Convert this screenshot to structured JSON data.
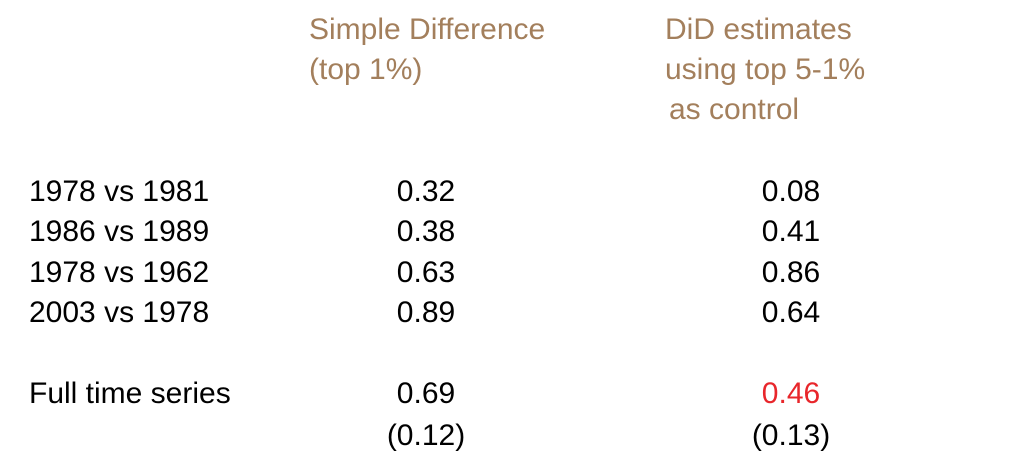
{
  "headers": {
    "col1": [
      "Simple Difference",
      "(top 1%)"
    ],
    "col2": [
      "DiD estimates",
      "using top 5-1%",
      "as control"
    ]
  },
  "rows": [
    {
      "label": "1978 vs 1981",
      "simple": "0.32",
      "did": "0.08"
    },
    {
      "label": "1986 vs 1989",
      "simple": "0.38",
      "did": "0.41"
    },
    {
      "label": "1978 vs 1962",
      "simple": "0.63",
      "did": "0.86"
    },
    {
      "label": "2003 vs 1978",
      "simple": "0.89",
      "did": "0.64"
    }
  ],
  "full_series": {
    "label": "Full time series",
    "simple": "0.69",
    "did": "0.46",
    "simple_se": "(0.12)",
    "did_se": "(0.13)"
  },
  "colors": {
    "header": "#a37f5c",
    "text": "#000000",
    "highlight": "#e8262b"
  }
}
